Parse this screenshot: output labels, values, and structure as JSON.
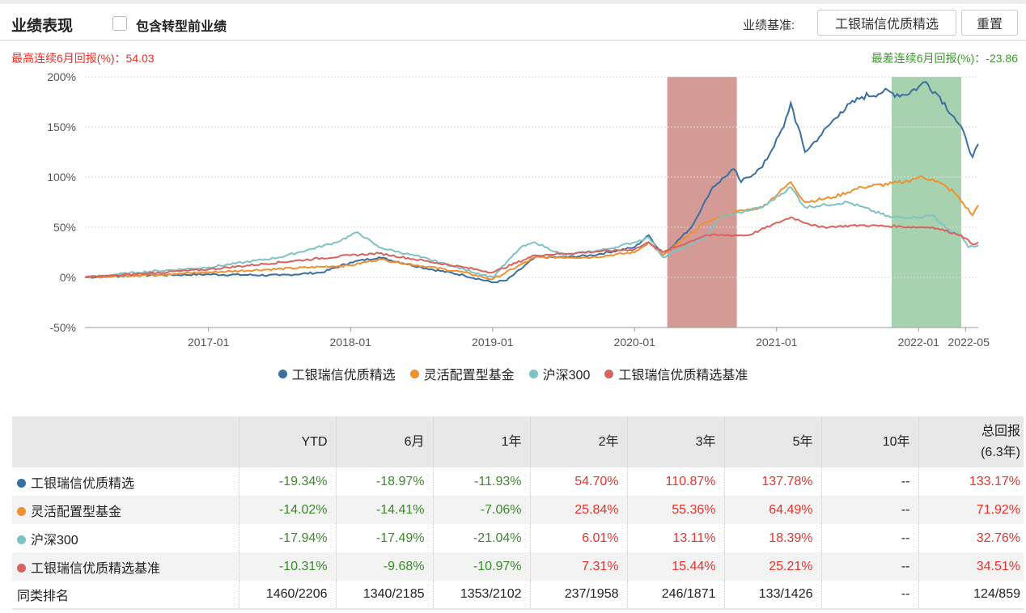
{
  "header": {
    "title": "业绩表现",
    "include_label": "包含转型前业绩",
    "benchmark_label": "业绩基准:",
    "benchmark_button": "工银瑞信优质精选",
    "reset_button": "重置"
  },
  "stats": {
    "max_6m": "最高连续6月回报(%)：54.03",
    "min_6m": "最差连续6月回报(%)：-23.86"
  },
  "colors": {
    "fund": "#3b6fa0",
    "category": "#f0902e",
    "hs300": "#7fc2c4",
    "benchmark": "#d9625e",
    "best_band": "#d49a96",
    "worst_band": "#a7d2b0"
  },
  "chart_data": {
    "type": "line",
    "y_ticks": [
      "200%",
      "150%",
      "100%",
      "50%",
      "0%",
      "-50%"
    ],
    "y_tick_values": [
      200,
      150,
      100,
      50,
      0,
      -50
    ],
    "ylim": [
      -50,
      200
    ],
    "x_ticks": [
      "2017-01",
      "2018-01",
      "2019-01",
      "2020-01",
      "2021-01",
      "2022-01",
      "2022-05"
    ],
    "x_tick_values": [
      2017.0,
      2018.0,
      2019.0,
      2020.0,
      2021.0,
      2022.0,
      2022.33
    ],
    "xlim": [
      2016.13,
      2022.42
    ],
    "shaded": [
      {
        "name": "best-6m",
        "from": 2020.23,
        "to": 2020.72
      },
      {
        "name": "worst-6m",
        "from": 2021.81,
        "to": 2022.3
      }
    ],
    "series": [
      {
        "name": "工银瑞信优质精选",
        "key": "fund",
        "points": [
          [
            2016.13,
            0
          ],
          [
            2016.5,
            2
          ],
          [
            2017.0,
            3
          ],
          [
            2017.5,
            2
          ],
          [
            2017.8,
            5
          ],
          [
            2018.0,
            15
          ],
          [
            2018.2,
            20
          ],
          [
            2018.5,
            10
          ],
          [
            2018.8,
            2
          ],
          [
            2019.0,
            -5
          ],
          [
            2019.1,
            -3
          ],
          [
            2019.3,
            20
          ],
          [
            2019.5,
            20
          ],
          [
            2019.7,
            22
          ],
          [
            2020.0,
            30
          ],
          [
            2020.1,
            42
          ],
          [
            2020.2,
            22
          ],
          [
            2020.4,
            50
          ],
          [
            2020.55,
            90
          ],
          [
            2020.7,
            108
          ],
          [
            2020.75,
            95
          ],
          [
            2020.9,
            110
          ],
          [
            2021.05,
            150
          ],
          [
            2021.1,
            174
          ],
          [
            2021.2,
            125
          ],
          [
            2021.3,
            140
          ],
          [
            2021.45,
            165
          ],
          [
            2021.6,
            180
          ],
          [
            2021.75,
            185
          ],
          [
            2021.9,
            182
          ],
          [
            2022.0,
            190
          ],
          [
            2022.05,
            195
          ],
          [
            2022.15,
            180
          ],
          [
            2022.25,
            160
          ],
          [
            2022.33,
            140
          ],
          [
            2022.38,
            120
          ],
          [
            2022.42,
            133
          ]
        ]
      },
      {
        "name": "灵活配置型基金",
        "key": "category",
        "points": [
          [
            2016.13,
            0
          ],
          [
            2017.0,
            5
          ],
          [
            2018.0,
            12
          ],
          [
            2018.2,
            18
          ],
          [
            2018.8,
            5
          ],
          [
            2019.0,
            -2
          ],
          [
            2019.3,
            20
          ],
          [
            2019.7,
            20
          ],
          [
            2020.0,
            25
          ],
          [
            2020.1,
            35
          ],
          [
            2020.2,
            22
          ],
          [
            2020.5,
            55
          ],
          [
            2020.7,
            65
          ],
          [
            2020.9,
            70
          ],
          [
            2021.1,
            95
          ],
          [
            2021.2,
            75
          ],
          [
            2021.4,
            80
          ],
          [
            2021.6,
            90
          ],
          [
            2021.9,
            95
          ],
          [
            2022.0,
            100
          ],
          [
            2022.1,
            98
          ],
          [
            2022.25,
            85
          ],
          [
            2022.38,
            62
          ],
          [
            2022.42,
            72
          ]
        ]
      },
      {
        "name": "沪深300",
        "key": "hs300",
        "points": [
          [
            2016.13,
            0
          ],
          [
            2016.5,
            5
          ],
          [
            2017.0,
            10
          ],
          [
            2017.5,
            20
          ],
          [
            2017.9,
            35
          ],
          [
            2018.05,
            45
          ],
          [
            2018.2,
            30
          ],
          [
            2018.5,
            20
          ],
          [
            2018.8,
            8
          ],
          [
            2019.0,
            0
          ],
          [
            2019.2,
            30
          ],
          [
            2019.3,
            35
          ],
          [
            2019.5,
            22
          ],
          [
            2019.8,
            28
          ],
          [
            2020.0,
            35
          ],
          [
            2020.1,
            40
          ],
          [
            2020.2,
            20
          ],
          [
            2020.5,
            40
          ],
          [
            2020.6,
            60
          ],
          [
            2020.9,
            70
          ],
          [
            2021.1,
            90
          ],
          [
            2021.2,
            70
          ],
          [
            2021.5,
            75
          ],
          [
            2021.8,
            60
          ],
          [
            2022.0,
            60
          ],
          [
            2022.1,
            62
          ],
          [
            2022.2,
            48
          ],
          [
            2022.3,
            42
          ],
          [
            2022.35,
            30
          ],
          [
            2022.42,
            32
          ]
        ]
      },
      {
        "name": "工银瑞信优质精选基准",
        "key": "benchmark",
        "points": [
          [
            2016.13,
            0
          ],
          [
            2017.0,
            8
          ],
          [
            2018.0,
            22
          ],
          [
            2018.2,
            24
          ],
          [
            2018.8,
            10
          ],
          [
            2019.0,
            5
          ],
          [
            2019.3,
            22
          ],
          [
            2020.0,
            28
          ],
          [
            2020.1,
            35
          ],
          [
            2020.2,
            25
          ],
          [
            2020.5,
            42
          ],
          [
            2020.8,
            42
          ],
          [
            2021.1,
            60
          ],
          [
            2021.3,
            50
          ],
          [
            2021.6,
            52
          ],
          [
            2022.0,
            50
          ],
          [
            2022.1,
            50
          ],
          [
            2022.3,
            42
          ],
          [
            2022.38,
            33
          ],
          [
            2022.42,
            35
          ]
        ]
      }
    ]
  },
  "table": {
    "headers": [
      "",
      "YTD",
      "6月",
      "1年",
      "2年",
      "3年",
      "5年",
      "10年",
      "总回报",
      "(6.3年)"
    ],
    "rows": [
      {
        "name": "工银瑞信优质精选",
        "key": "fund",
        "values": [
          "-19.34%",
          "-18.97%",
          "-11.93%",
          "54.70%",
          "110.87%",
          "137.78%",
          "--",
          "133.17%"
        ]
      },
      {
        "name": "灵活配置型基金",
        "key": "category",
        "values": [
          "-14.02%",
          "-14.41%",
          "-7.06%",
          "25.84%",
          "55.36%",
          "64.49%",
          "--",
          "71.92%"
        ]
      },
      {
        "name": "沪深300",
        "key": "hs300",
        "values": [
          "-17.94%",
          "-17.49%",
          "-21.04%",
          "6.01%",
          "13.11%",
          "18.39%",
          "--",
          "32.76%"
        ]
      },
      {
        "name": "工银瑞信优质精选基准",
        "key": "benchmark",
        "values": [
          "-10.31%",
          "-9.68%",
          "-10.97%",
          "7.31%",
          "15.44%",
          "25.21%",
          "--",
          "34.51%"
        ]
      }
    ],
    "rank_label": "同类排名",
    "rank": [
      "1460/2206",
      "1340/2185",
      "1353/2102",
      "237/1958",
      "246/1871",
      "133/1426",
      "--",
      "124/859"
    ]
  }
}
